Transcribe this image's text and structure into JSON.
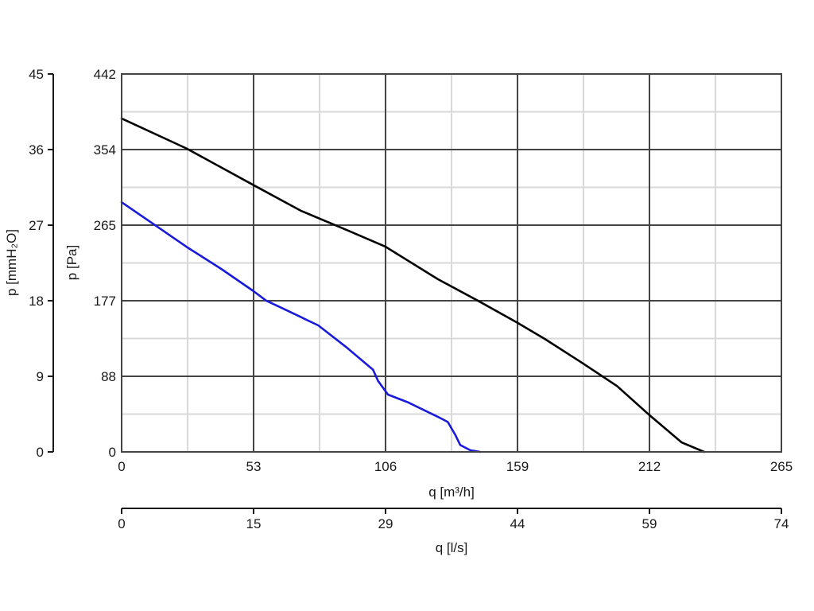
{
  "chart_data": {
    "type": "line",
    "title": "",
    "xlabel": "q [m³/h]",
    "ylabel": "p [Pa]",
    "xlim": [
      0,
      265
    ],
    "ylim": [
      0,
      442
    ],
    "x_ticks": [
      "0",
      "53",
      "106",
      "159",
      "212",
      "265"
    ],
    "y_ticks": [
      "0",
      "88",
      "177",
      "265",
      "354",
      "442"
    ],
    "secondary_x_axis": {
      "label": "q [l/s]",
      "ticks": [
        "0",
        "15",
        "29",
        "44",
        "59",
        "74"
      ]
    },
    "secondary_y_axis": {
      "label": "p [mmH₂O]",
      "ticks": [
        "0",
        "9",
        "18",
        "27",
        "36",
        "45"
      ]
    },
    "grid": true,
    "colors": {
      "black_curve": "#000000",
      "blue_curve": "#1a1adb",
      "major_grid": "#444444",
      "minor_grid": "#d9d9d9"
    },
    "series": [
      {
        "color": "#000000",
        "x": [
          0,
          26,
          53,
          72,
          90,
          106,
          127,
          143,
          159,
          170,
          185,
          199,
          212,
          225,
          234
        ],
        "y": [
          390,
          355,
          312,
          282,
          260,
          240,
          202,
          177,
          151,
          132,
          104,
          77,
          43,
          11,
          0
        ]
      },
      {
        "color": "#1a1adb",
        "x": [
          0,
          13,
          26,
          40,
          53,
          58,
          66,
          79,
          90,
          101,
          103,
          107,
          115,
          127,
          131,
          134,
          136,
          140,
          144
        ],
        "y": [
          292,
          266,
          240,
          214,
          188,
          177,
          166,
          148,
          123,
          96,
          83,
          67,
          58,
          41,
          35,
          20,
          8,
          2,
          0
        ]
      }
    ]
  }
}
